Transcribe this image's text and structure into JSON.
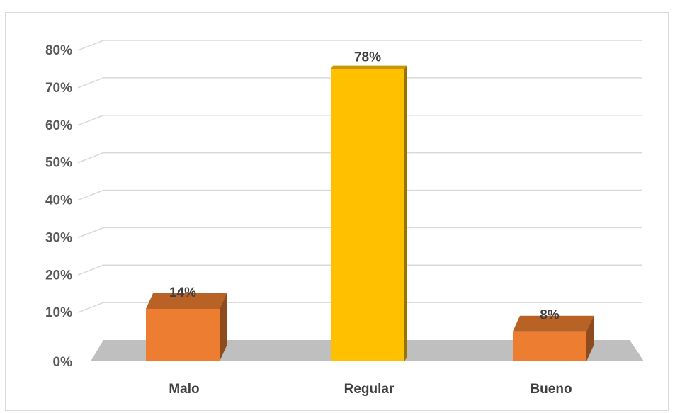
{
  "chart_data": {
    "type": "bar",
    "title": "",
    "xlabel": "",
    "ylabel": "",
    "categories": [
      "Malo",
      "Regular",
      "Bueno"
    ],
    "values": [
      14,
      78,
      8
    ],
    "data_labels": [
      "14%",
      "78%",
      "8%"
    ],
    "y_ticks": [
      "0%",
      "10%",
      "20%",
      "30%",
      "40%",
      "50%",
      "60%",
      "70%",
      "80%"
    ],
    "ylim": [
      0,
      80
    ],
    "grid": true,
    "legend": "none",
    "three_d": true,
    "colors": {
      "Malo": "#ED7D31",
      "Regular": "#FFC000",
      "Bueno": "#ED7D31",
      "floor": "#bfbfbf",
      "grid": "#d9d9d9"
    }
  }
}
